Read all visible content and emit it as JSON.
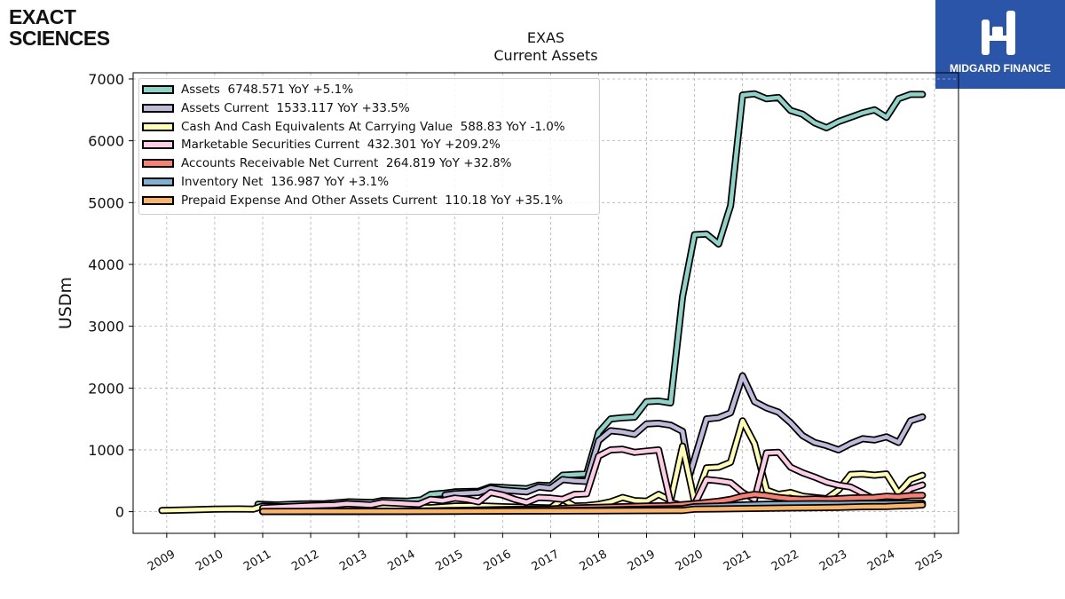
{
  "logos": {
    "left_line1": "EXACT",
    "left_line2": "SCIENCES",
    "right_text": "MIDGARD FINANCE"
  },
  "chart_data": {
    "type": "line",
    "title": "EXAS",
    "subtitle": "Current  Assets",
    "ylabel": "USDm",
    "xlabel": "",
    "xlim": [
      2008.3,
      2025.5
    ],
    "ylim": [
      -350,
      7100
    ],
    "yticks": [
      0,
      1000,
      2000,
      3000,
      4000,
      5000,
      6000,
      7000
    ],
    "xticks": [
      2009,
      2010,
      2011,
      2012,
      2013,
      2014,
      2015,
      2016,
      2017,
      2018,
      2019,
      2020,
      2021,
      2022,
      2023,
      2024,
      2025
    ],
    "grid": true,
    "legend_position": "top-left",
    "series": [
      {
        "name": "Assets  6748.571 YoY +5.1%",
        "color": "#8dd3c7",
        "x": [
          2010.9,
          2011.3,
          2011.8,
          2012.3,
          2012.8,
          2013.3,
          2013.5,
          2014.0,
          2014.3,
          2014.5,
          2014.8,
          2015.0,
          2015.5,
          2015.75,
          2016.0,
          2016.5,
          2016.75,
          2017.0,
          2017.25,
          2017.5,
          2017.75,
          2018.0,
          2018.25,
          2018.5,
          2018.75,
          2019.0,
          2019.25,
          2019.5,
          2019.75,
          2020.0,
          2020.25,
          2020.5,
          2020.75,
          2021.0,
          2021.25,
          2021.5,
          2021.75,
          2022.0,
          2022.25,
          2022.5,
          2022.75,
          2023.0,
          2023.25,
          2023.5,
          2023.75,
          2024.0,
          2024.25,
          2024.5,
          2024.75
        ],
        "y": [
          120,
          110,
          125,
          130,
          160,
          150,
          180,
          170,
          190,
          280,
          300,
          320,
          330,
          400,
          390,
          370,
          430,
          420,
          590,
          600,
          610,
          1280,
          1500,
          1520,
          1530,
          1780,
          1790,
          1760,
          3480,
          4480,
          4490,
          4330,
          4950,
          6740,
          6760,
          6680,
          6700,
          6490,
          6430,
          6290,
          6210,
          6310,
          6380,
          6450,
          6500,
          6380,
          6680,
          6750,
          6750
        ]
      },
      {
        "name": "Assets Current  1533.117 YoY +33.5%",
        "color": "#bebada",
        "x": [
          2014.8,
          2015.0,
          2015.5,
          2015.75,
          2016.0,
          2016.5,
          2016.75,
          2017.0,
          2017.25,
          2017.5,
          2017.75,
          2018.0,
          2018.25,
          2018.5,
          2018.75,
          2019.0,
          2019.25,
          2019.5,
          2019.75,
          2019.9,
          2020.25,
          2020.5,
          2020.75,
          2021.0,
          2021.25,
          2021.5,
          2021.75,
          2022.0,
          2022.25,
          2022.5,
          2022.75,
          2023.0,
          2023.25,
          2023.5,
          2023.75,
          2024.0,
          2024.25,
          2024.5,
          2024.75
        ],
        "y": [
          270,
          290,
          310,
          380,
          350,
          320,
          400,
          380,
          520,
          500,
          490,
          1150,
          1310,
          1290,
          1250,
          1420,
          1430,
          1400,
          1300,
          600,
          1500,
          1520,
          1600,
          2200,
          1780,
          1680,
          1610,
          1440,
          1230,
          1120,
          1070,
          1000,
          1100,
          1180,
          1160,
          1210,
          1120,
          1470,
          1533
        ]
      },
      {
        "name": "Cash And Cash Equivalents At Carrying Value  588.83 YoY -1.0%",
        "color": "#ffffb3",
        "x": [
          2008.9,
          2009.5,
          2010.0,
          2010.5,
          2010.8,
          2011.0,
          2011.5,
          2012.0,
          2012.5,
          2013.0,
          2013.5,
          2014.0,
          2014.5,
          2015.0,
          2015.5,
          2016.0,
          2016.5,
          2017.0,
          2017.25,
          2017.5,
          2017.75,
          2018.0,
          2018.25,
          2018.5,
          2018.75,
          2019.0,
          2019.25,
          2019.5,
          2019.75,
          2020.0,
          2020.25,
          2020.5,
          2020.75,
          2021.0,
          2021.25,
          2021.5,
          2021.75,
          2022.0,
          2022.25,
          2022.5,
          2022.75,
          2023.0,
          2023.25,
          2023.5,
          2023.75,
          2024.0,
          2024.25,
          2024.5,
          2024.75
        ],
        "y": [
          20,
          30,
          40,
          45,
          40,
          90,
          75,
          70,
          65,
          60,
          75,
          70,
          65,
          90,
          95,
          80,
          70,
          60,
          200,
          90,
          100,
          120,
          160,
          230,
          180,
          170,
          280,
          180,
          1060,
          160,
          710,
          720,
          800,
          1470,
          1100,
          350,
          280,
          310,
          250,
          230,
          210,
          350,
          600,
          610,
          590,
          610,
          300,
          520,
          589
        ]
      },
      {
        "name": "Marketable Securities Current  432.301 YoY +209.2%",
        "color": "#fccde5",
        "x": [
          2011.0,
          2011.5,
          2012.0,
          2012.5,
          2012.75,
          2013.0,
          2013.25,
          2013.5,
          2013.75,
          2014.0,
          2014.25,
          2014.5,
          2014.75,
          2015.0,
          2015.25,
          2015.5,
          2015.75,
          2016.0,
          2016.25,
          2016.5,
          2016.75,
          2017.0,
          2017.25,
          2017.5,
          2017.75,
          2018.0,
          2018.25,
          2018.5,
          2018.75,
          2019.0,
          2019.25,
          2019.5,
          2019.75,
          2020.0,
          2020.25,
          2020.5,
          2020.75,
          2021.0,
          2021.25,
          2021.5,
          2021.75,
          2022.0,
          2022.25,
          2022.5,
          2022.75,
          2023.0,
          2023.25,
          2023.5,
          2023.75,
          2024.0,
          2024.25,
          2024.5,
          2024.75
        ],
        "y": [
          60,
          80,
          100,
          110,
          130,
          120,
          110,
          150,
          140,
          130,
          120,
          200,
          180,
          220,
          200,
          160,
          310,
          270,
          200,
          150,
          230,
          220,
          200,
          280,
          290,
          900,
          1000,
          1010,
          960,
          980,
          1000,
          150,
          100,
          120,
          520,
          500,
          470,
          310,
          200,
          950,
          960,
          720,
          630,
          560,
          480,
          430,
          400,
          300,
          200,
          220,
          210,
          370,
          432
        ]
      },
      {
        "name": "Accounts Receivable Net Current  264.819 YoY +32.8%",
        "color": "#fb8072",
        "x": [
          2011.0,
          2012.0,
          2013.0,
          2014.0,
          2015.0,
          2016.0,
          2017.0,
          2017.5,
          2018.0,
          2018.5,
          2019.0,
          2019.5,
          2020.0,
          2020.25,
          2020.5,
          2020.75,
          2021.0,
          2021.25,
          2021.5,
          2021.75,
          2022.0,
          2022.25,
          2022.5,
          2022.75,
          2023.0,
          2023.25,
          2023.5,
          2023.75,
          2024.0,
          2024.25,
          2024.5,
          2024.75
        ],
        "y": [
          2,
          3,
          5,
          8,
          20,
          35,
          45,
          60,
          70,
          80,
          90,
          100,
          130,
          150,
          170,
          200,
          250,
          280,
          260,
          230,
          210,
          200,
          205,
          200,
          210,
          220,
          225,
          230,
          250,
          240,
          260,
          265
        ]
      },
      {
        "name": "Inventory Net  136.987 YoY +3.1%",
        "color": "#80b1d3",
        "x": [
          2011.0,
          2012.0,
          2013.0,
          2014.0,
          2015.0,
          2016.0,
          2017.0,
          2018.0,
          2019.0,
          2019.75,
          2020.0,
          2020.5,
          2021.0,
          2021.5,
          2022.0,
          2022.5,
          2023.0,
          2023.5,
          2024.0,
          2024.5,
          2024.75
        ],
        "y": [
          1,
          2,
          3,
          4,
          8,
          12,
          15,
          25,
          40,
          50,
          80,
          90,
          110,
          120,
          125,
          130,
          128,
          132,
          133,
          135,
          137
        ]
      },
      {
        "name": "Prepaid Expense And Other Assets Current  110.18 YoY +35.1%",
        "color": "#fdb462",
        "x": [
          2011.0,
          2012.0,
          2013.0,
          2014.0,
          2015.0,
          2016.0,
          2017.0,
          2018.0,
          2019.0,
          2019.75,
          2020.0,
          2020.5,
          2021.0,
          2021.5,
          2022.0,
          2022.5,
          2023.0,
          2023.5,
          2024.0,
          2024.5,
          2024.75
        ],
        "y": [
          3,
          4,
          5,
          6,
          8,
          10,
          12,
          15,
          18,
          20,
          40,
          45,
          50,
          55,
          60,
          65,
          70,
          80,
          85,
          100,
          110
        ]
      }
    ]
  }
}
